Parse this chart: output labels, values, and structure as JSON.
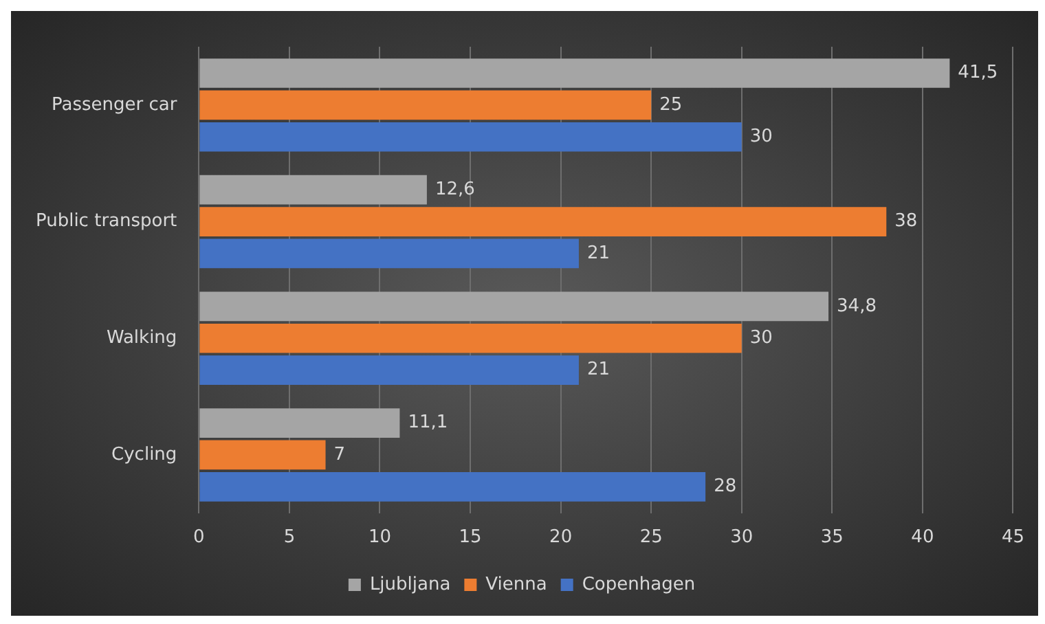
{
  "chart_data": {
    "type": "bar",
    "orientation": "horizontal",
    "categories": [
      "Passenger car",
      "Public transport",
      "Walking",
      "Cycling"
    ],
    "series": [
      {
        "name": "Ljubljana",
        "color": "#a5a5a5",
        "values": [
          41.5,
          12.6,
          34.8,
          11.1
        ],
        "value_labels": [
          "41,5",
          "12,6",
          "34,8",
          "11,1"
        ]
      },
      {
        "name": "Vienna",
        "color": "#ed7d31",
        "values": [
          25,
          38,
          30,
          7
        ],
        "value_labels": [
          "25",
          "38",
          "30",
          "7"
        ]
      },
      {
        "name": "Copenhagen",
        "color": "#4472c4",
        "values": [
          30,
          21,
          21,
          28
        ],
        "value_labels": [
          "30",
          "21",
          "21",
          "28"
        ]
      }
    ],
    "xlim": [
      0,
      45
    ],
    "xticks": [
      0,
      5,
      10,
      15,
      20,
      25,
      30,
      35,
      40,
      45
    ],
    "grid": "x",
    "legend": "bottom"
  }
}
